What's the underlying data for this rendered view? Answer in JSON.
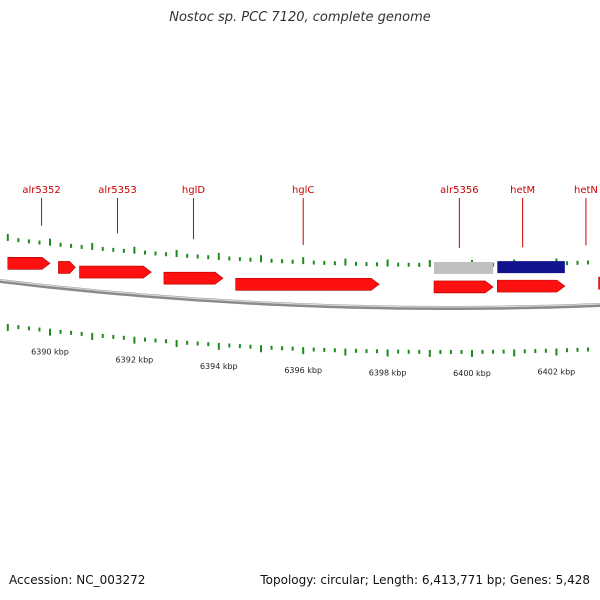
{
  "title": "Nostoc sp. PCC 7120, complete genome",
  "footer": {
    "accession": "Accession: NC_003272",
    "summary": "Topology: circular; Length: 6,413,771 bp; Genes: 5,428"
  },
  "colors": {
    "gene_fill": "#ff1010",
    "gene_label": "#cc0000",
    "tick": "#1e8a1e",
    "backbone": "#8a8a8a",
    "feature_gray": "#c0c0c0",
    "feature_blue": "#12128c"
  },
  "genes": [
    {
      "name": "",
      "start": 6389.0,
      "end": 6390.0,
      "strand": "+"
    },
    {
      "name": "",
      "start": 6390.2,
      "end": 6390.6,
      "strand": "+"
    },
    {
      "name": "alr5353",
      "start": 6390.7,
      "end": 6392.4,
      "strand": "+"
    },
    {
      "name": "hglD",
      "start": 6392.7,
      "end": 6394.1,
      "strand": "+"
    },
    {
      "name": "hglC",
      "start": 6394.4,
      "end": 6397.8,
      "strand": "+"
    },
    {
      "name": "alr5356",
      "start": 6399.1,
      "end": 6400.5,
      "strand": "+"
    },
    {
      "name": "hetM",
      "start": 6400.6,
      "end": 6402.2,
      "strand": "+"
    },
    {
      "name": "",
      "start": 6403.0,
      "end": 6404.0,
      "strand": "+"
    }
  ],
  "gene_labels": [
    {
      "name": "alr5352",
      "pos": 6389.8
    },
    {
      "name": "alr5353",
      "pos": 6391.6
    },
    {
      "name": "hglD",
      "pos": 6393.4
    },
    {
      "name": "hglC",
      "pos": 6396.0
    },
    {
      "name": "alr5356",
      "pos": 6399.7
    },
    {
      "name": "hetM",
      "pos": 6401.2
    },
    {
      "name": "hetN",
      "pos": 6402.7
    }
  ],
  "features": [
    {
      "kind": "gray",
      "start": 6399.1,
      "end": 6400.5
    },
    {
      "kind": "blue",
      "start": 6400.6,
      "end": 6402.2
    }
  ],
  "scale_labels": [
    "6390 kbp",
    "6392 kbp",
    "6394 kbp",
    "6396 kbp",
    "6398 kbp",
    "6400 kbp",
    "6402 kbp"
  ],
  "scale_values": [
    6390,
    6392,
    6394,
    6396,
    6398,
    6400,
    6402
  ]
}
